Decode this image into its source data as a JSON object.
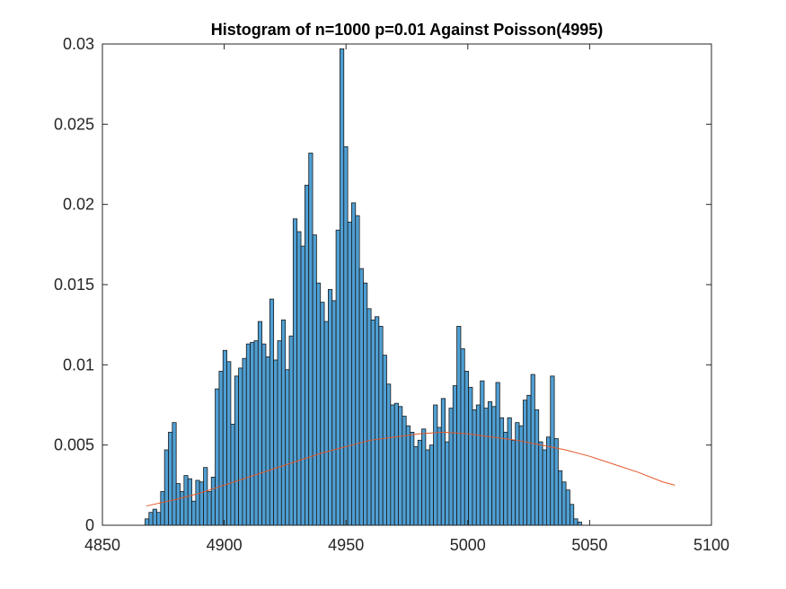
{
  "chart_data": {
    "type": "bar",
    "title": "Histogram of n=1000 p=0.01 Against Poisson(4995)",
    "xlabel": "",
    "ylabel": "",
    "xlim": [
      4850,
      5100
    ],
    "ylim": [
      0,
      0.03
    ],
    "xticks": [
      "4850",
      "4900",
      "4950",
      "5000",
      "5050",
      "5100"
    ],
    "yticks": [
      "0",
      "0.005",
      "0.01",
      "0.015",
      "0.02",
      "0.025",
      "0.03"
    ],
    "bin_edges_start": 4867.5,
    "bin_width": 1.6,
    "bar_color": "#4f9fd3",
    "bar_edge_color": "#1a1a1a",
    "curve_color": "#e4582a",
    "series": [
      {
        "type": "bar",
        "values": [
          0.0004,
          0.0008,
          0.001,
          0.0008,
          0.0021,
          0.0047,
          0.0058,
          0.0064,
          0.0026,
          0.0021,
          0.0031,
          0.0029,
          0.0015,
          0.0028,
          0.0027,
          0.0036,
          0.0021,
          0.003,
          0.0085,
          0.0096,
          0.0109,
          0.0102,
          0.0063,
          0.0093,
          0.0098,
          0.0104,
          0.0113,
          0.0114,
          0.0115,
          0.0127,
          0.0113,
          0.0105,
          0.0141,
          0.0103,
          0.0115,
          0.0128,
          0.0097,
          0.0118,
          0.0191,
          0.0183,
          0.0174,
          0.0212,
          0.0232,
          0.0181,
          0.0151,
          0.0139,
          0.0127,
          0.0147,
          0.014,
          0.0184,
          0.0297,
          0.0236,
          0.0189,
          0.0201,
          0.0193,
          0.016,
          0.0151,
          0.0135,
          0.0128,
          0.013,
          0.0124,
          0.0106,
          0.0088,
          0.0075,
          0.0076,
          0.0074,
          0.0068,
          0.0062,
          0.0058,
          0.0049,
          0.0053,
          0.006,
          0.0047,
          0.005,
          0.0075,
          0.0061,
          0.0079,
          0.0052,
          0.0073,
          0.0087,
          0.0124,
          0.011,
          0.0096,
          0.0086,
          0.0072,
          0.0075,
          0.009,
          0.0073,
          0.0077,
          0.0074,
          0.0089,
          0.0067,
          0.0058,
          0.0067,
          0.0053,
          0.0064,
          0.0062,
          0.0078,
          0.0081,
          0.0094,
          0.0072,
          0.0052,
          0.0047,
          0.0055,
          0.0093,
          0.0054,
          0.0034,
          0.0027,
          0.0022,
          0.0013,
          0.0004,
          0.0002
        ]
      },
      {
        "type": "line",
        "x": [
          4868,
          4880,
          4890,
          4900,
          4910,
          4920,
          4930,
          4940,
          4950,
          4960,
          4970,
          4980,
          4990,
          5000,
          5010,
          5020,
          5030,
          5040,
          5050,
          5060,
          5070,
          5080,
          5085
        ],
        "y": [
          0.0012,
          0.0016,
          0.002,
          0.0025,
          0.003,
          0.0035,
          0.004,
          0.0045,
          0.0049,
          0.0053,
          0.0055,
          0.0057,
          0.0058,
          0.0057,
          0.0055,
          0.0053,
          0.005,
          0.0047,
          0.0043,
          0.0038,
          0.0033,
          0.0027,
          0.0025
        ]
      }
    ]
  }
}
